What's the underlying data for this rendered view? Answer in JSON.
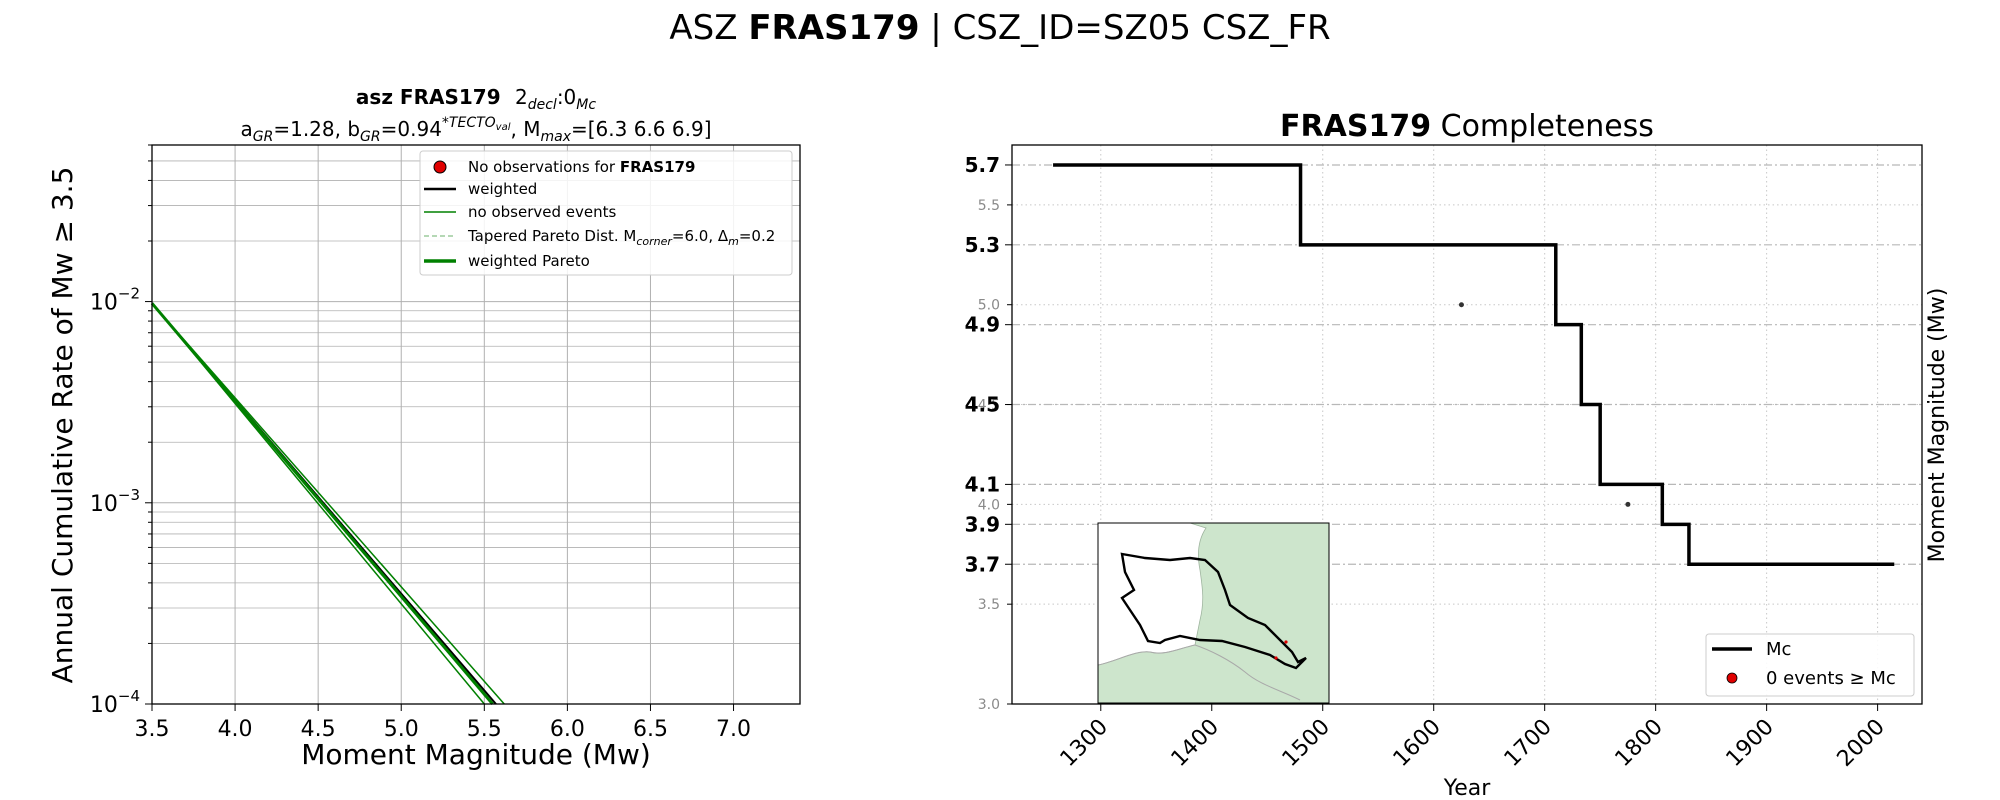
{
  "suptitle": {
    "prefix": "ASZ ",
    "bold": "FRAS179",
    "suffix": " | CSZ_ID=SZ05 CSZ_FR"
  },
  "chart_data": [
    {
      "type": "line",
      "title": {
        "line1_bold": "asz FRAS179",
        "line1_rest": "2",
        "line1_sub1": "decl",
        "line1_mid": ":0",
        "line1_sub2": "Mc",
        "line2_a": "a",
        "line2_a_sub": "GR",
        "line2_a_val": "=1.28,  b",
        "line2_b_sub": "GR",
        "line2_b_val": "=0.94",
        "line2_sup": "*TECTO",
        "line2_sup_sub": "val",
        "line2_m": ", M",
        "line2_m_sub": "max",
        "line2_m_val": "=[6.3 6.6 6.9]"
      },
      "xlabel": "Moment Magnitude (Mw)",
      "ylabel": "Annual Cumulative Rate of Mw  ≥  3.5",
      "xlim": [
        3.5,
        7.4
      ],
      "ylim": [
        0.0001,
        0.06
      ],
      "yscale": "log",
      "xticks": [
        "3.5",
        "4.0",
        "4.5",
        "5.0",
        "5.5",
        "6.0",
        "6.5",
        "7.0"
      ],
      "yticks": [
        {
          "value": 0.01,
          "base": "10",
          "exp": "−2"
        },
        {
          "value": 0.001,
          "base": "10",
          "exp": "−3"
        },
        {
          "value": 0.0001,
          "base": "10",
          "exp": "−4"
        }
      ],
      "grid": true,
      "legend_position": "upper-right",
      "legend": [
        {
          "label": "No observations for ",
          "label_bold": "FRAS179",
          "style": "red-dot"
        },
        {
          "label": "weighted",
          "style": "black-line"
        },
        {
          "label": "no observed events",
          "style": "green-thin"
        },
        {
          "label": "Tapered Pareto Dist. M",
          "sub1": "corner",
          "mid": "=6.0, Δ",
          "sub2": "m",
          "end": "=0.2",
          "style": "green-dashed"
        },
        {
          "label": "weighted Pareto",
          "style": "green-thick"
        }
      ],
      "series": [
        {
          "name": "weighted",
          "color": "#000000",
          "width": 2,
          "x": [
            3.5,
            5.57
          ],
          "y": [
            0.0098,
            0.0001
          ]
        },
        {
          "name": "weighted Pareto",
          "color": "#008000",
          "width": 3,
          "x": [
            3.5,
            5.55
          ],
          "y": [
            0.0098,
            0.0001
          ]
        },
        {
          "name": "no observed events",
          "color": "#008000",
          "width": 1.5,
          "x": [
            3.5,
            5.5
          ],
          "y": [
            0.0098,
            0.0001
          ]
        },
        {
          "name": "no observed events",
          "color": "#008000",
          "width": 1.5,
          "x": [
            3.5,
            5.62
          ],
          "y": [
            0.0098,
            0.0001
          ]
        }
      ]
    },
    {
      "type": "line",
      "title_bold": "FRAS179",
      "title_rest": " Completeness",
      "xlabel": "Year",
      "ylabel": "Moment Magnitude (Mw)",
      "xlim": [
        1220,
        2040
      ],
      "ylim": [
        3.0,
        5.8
      ],
      "xticks": [
        "1300",
        "1400",
        "1500",
        "1600",
        "1700",
        "1800",
        "1900",
        "2000"
      ],
      "yticks_minor": [
        "3.0",
        "3.5",
        "4.0",
        "4.5",
        "5.0",
        "5.5"
      ],
      "yticks_major": [
        "3.7",
        "3.9",
        "4.1",
        "4.5",
        "4.9",
        "5.3",
        "5.7"
      ],
      "grid": true,
      "legend_position": "lower-right",
      "legend": [
        {
          "label": "Mc",
          "style": "black-line"
        },
        {
          "label": "0 events  ≥  Mc",
          "style": "red-dot"
        }
      ],
      "mc_step": {
        "name": "Mc",
        "x": [
          1257,
          1480,
          1480,
          1710,
          1710,
          1733,
          1733,
          1750,
          1750,
          1806,
          1806,
          1830,
          1830,
          2015
        ],
        "y": [
          5.7,
          5.7,
          5.3,
          5.3,
          4.9,
          4.9,
          4.5,
          4.5,
          4.1,
          4.1,
          3.9,
          3.9,
          3.7,
          3.7
        ]
      },
      "points": [
        {
          "x": 1625,
          "y": 5.0
        },
        {
          "x": 1775,
          "y": 4.0
        }
      ],
      "inset": {
        "type": "map",
        "fill": "#cde5cc"
      }
    }
  ]
}
